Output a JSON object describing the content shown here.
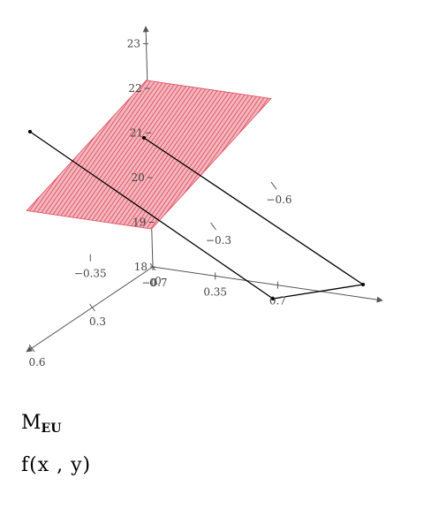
{
  "chart_data": {
    "type": "surface-3d",
    "x_ticks": [
      "−0.35",
      "0",
      "0.35",
      "0.7"
    ],
    "x_ticks_extra": [
      "−0.7"
    ],
    "y_ticks": [
      "−0.6",
      "−0.3",
      "0",
      "0.3",
      "0.6"
    ],
    "z_ticks": [
      "18",
      "19",
      "20",
      "21",
      "22",
      "23"
    ],
    "surface": {
      "color": "#e0485a",
      "corners": [
        {
          "x": -0.7,
          "y": -0.6,
          "z": 19.95
        },
        {
          "x": 0.0,
          "y": -0.6,
          "z": 19.95
        },
        {
          "x": 0.0,
          "y": 0.0,
          "z": 18.85
        },
        {
          "x": -0.7,
          "y": 0.0,
          "z": 18.85
        }
      ]
    },
    "frame": {
      "color": "#000000"
    }
  },
  "captions": {
    "variable_main": "M",
    "variable_sub": "EU",
    "function": "f(x , y)"
  }
}
